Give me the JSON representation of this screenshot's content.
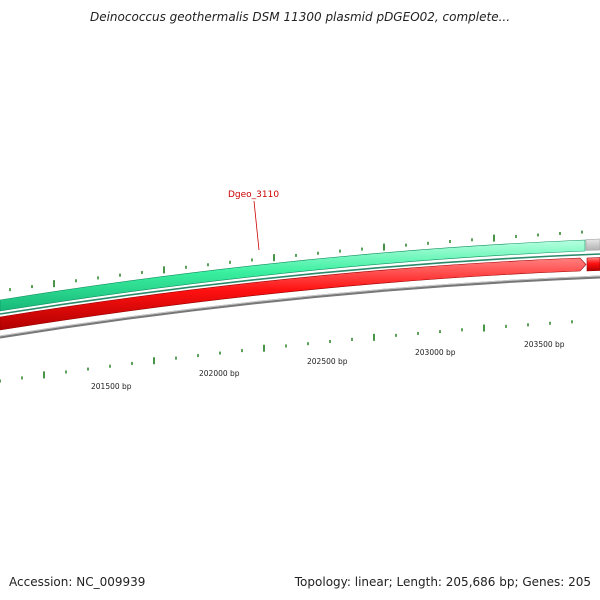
{
  "title": "Deinococcus geothermalis DSM 11300 plasmid pDGEO02, complete...",
  "accession": "Accession: NC_009939",
  "summary": "Topology: linear; Length: 205,686 bp; Genes: 205",
  "gene_label": "Dgeo_3110",
  "bp_ticks": [
    "201500 bp",
    "202000 bp",
    "202500 bp",
    "203000 bp",
    "203500 bp"
  ],
  "colors": {
    "forward_track": "#33ee99",
    "reverse_track": "#ee1111",
    "backbone": "#888888",
    "gc_marks": "#338833",
    "gene_label": "#cc0000"
  }
}
